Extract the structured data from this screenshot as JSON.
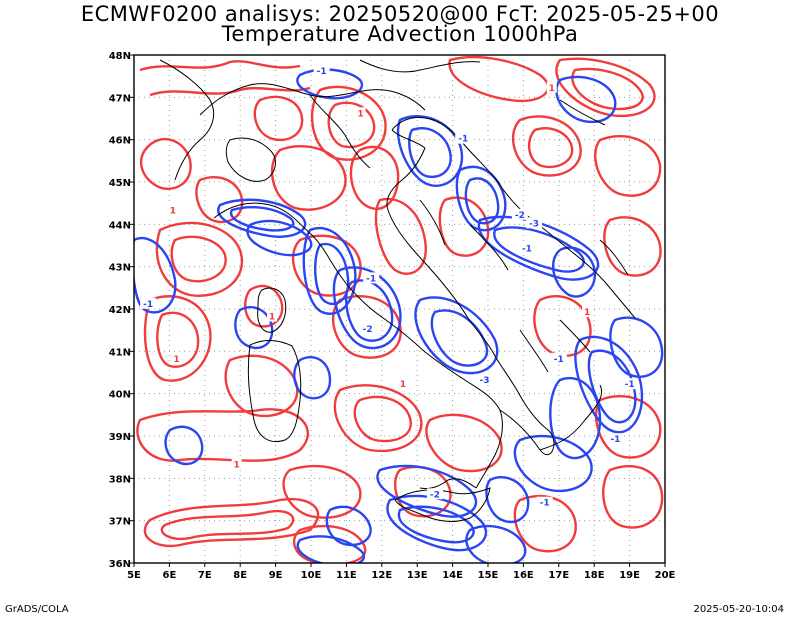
{
  "title_line1": "ECMWF0200 analisys: 20250520@00 FcT: 2025-05-25+00",
  "title_line2": "Temperature Advection 1000hPa",
  "credit": "GrADS/COLA",
  "timestamp": "2025-05-20-10:04",
  "map": {
    "lon_labels": [
      "5E",
      "6E",
      "7E",
      "8E",
      "9E",
      "10E",
      "11E",
      "12E",
      "13E",
      "14E",
      "15E",
      "16E",
      "17E",
      "18E",
      "19E",
      "20E"
    ],
    "lat_labels": [
      "36N",
      "37N",
      "38N",
      "39N",
      "40N",
      "41N",
      "42N",
      "43N",
      "44N",
      "45N",
      "46N",
      "47N",
      "48N"
    ],
    "lon_range": [
      5,
      20
    ],
    "lat_range": [
      36,
      48
    ],
    "grid": "dotted",
    "colors": {
      "warm_advection": "#f03c3c",
      "cold_advection": "#2b46f0",
      "borders": "#000000",
      "grid": "#a0a0a0"
    },
    "contour_labels": [
      {
        "text": "1",
        "lon": 6.1,
        "lat": 44.3,
        "sign": "warm"
      },
      {
        "text": "1",
        "lon": 8.9,
        "lat": 41.8,
        "sign": "warm"
      },
      {
        "text": "1",
        "lon": 11.4,
        "lat": 46.6,
        "sign": "warm"
      },
      {
        "text": "1",
        "lon": 12.6,
        "lat": 40.2,
        "sign": "warm"
      },
      {
        "text": "1",
        "lon": 6.2,
        "lat": 40.8,
        "sign": "warm"
      },
      {
        "text": "1",
        "lon": 16.8,
        "lat": 47.2,
        "sign": "warm"
      },
      {
        "text": "1",
        "lon": 7.9,
        "lat": 38.3,
        "sign": "warm"
      },
      {
        "text": "1",
        "lon": 17.8,
        "lat": 41.9,
        "sign": "warm"
      },
      {
        "text": "-1",
        "lon": 10.3,
        "lat": 47.6,
        "sign": "cold"
      },
      {
        "text": "-1",
        "lon": 14.3,
        "lat": 46.0,
        "sign": "cold"
      },
      {
        "text": "-1",
        "lon": 16.1,
        "lat": 43.4,
        "sign": "cold"
      },
      {
        "text": "-1",
        "lon": 11.7,
        "lat": 42.7,
        "sign": "cold"
      },
      {
        "text": "-1",
        "lon": 18.6,
        "lat": 38.9,
        "sign": "cold"
      },
      {
        "text": "-1",
        "lon": 16.6,
        "lat": 37.4,
        "sign": "cold"
      },
      {
        "text": "-1",
        "lon": 5.4,
        "lat": 42.1,
        "sign": "cold"
      },
      {
        "text": "-2",
        "lon": 15.9,
        "lat": 44.2,
        "sign": "cold"
      },
      {
        "text": "-2",
        "lon": 11.6,
        "lat": 41.5,
        "sign": "cold"
      },
      {
        "text": "-2",
        "lon": 13.5,
        "lat": 37.6,
        "sign": "cold"
      },
      {
        "text": "-3",
        "lon": 14.9,
        "lat": 40.3,
        "sign": "cold"
      },
      {
        "text": "-3",
        "lon": 16.3,
        "lat": 44.0,
        "sign": "cold"
      },
      {
        "text": "-1",
        "lon": 17.0,
        "lat": 40.8,
        "sign": "cold"
      },
      {
        "text": "-1",
        "lon": 19.0,
        "lat": 40.2,
        "sign": "cold"
      }
    ]
  }
}
